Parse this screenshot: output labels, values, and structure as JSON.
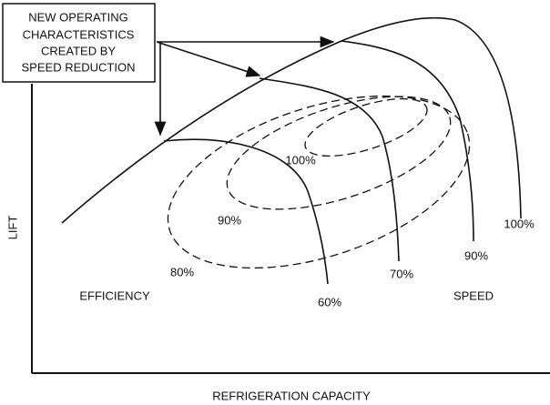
{
  "annotation": {
    "lines": [
      "NEW OPERATING",
      "CHARACTERISTICS",
      "CREATED BY",
      "SPEED REDUCTION"
    ]
  },
  "axes": {
    "x_label": "REFRIGERATION CAPACITY",
    "y_label": "LIFT"
  },
  "efficiency_labels": [
    "100%",
    "90%",
    "80%"
  ],
  "speed_labels": [
    "60%",
    "70%",
    "90%",
    "100%"
  ],
  "region_labels": {
    "efficiency": "EFFICIENCY",
    "speed": "SPEED"
  }
}
